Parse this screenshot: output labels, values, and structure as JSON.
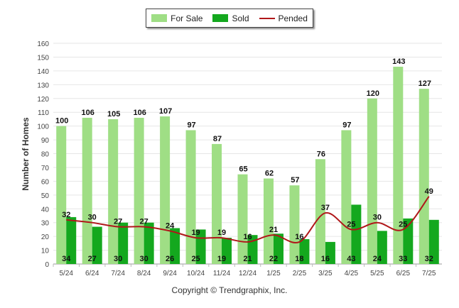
{
  "legend": {
    "for_sale": "For Sale",
    "sold": "Sold",
    "pended": "Pended"
  },
  "colors": {
    "for_sale": "#9fde85",
    "sold": "#14a81e",
    "pended": "#b0171a",
    "grid": "#e6e6e6"
  },
  "footer": "Copyright © Trendgraphix, Inc.",
  "chart_data": {
    "type": "bar",
    "ylabel": "Number of Homes",
    "xlabel": "",
    "ylim": [
      0,
      160
    ],
    "yticks": [
      0,
      10,
      20,
      30,
      40,
      50,
      60,
      70,
      80,
      90,
      100,
      110,
      120,
      130,
      140,
      150,
      160
    ],
    "grid": true,
    "legend_position": "top-center",
    "categories": [
      "5/24",
      "6/24",
      "7/24",
      "8/24",
      "9/24",
      "10/24",
      "11/24",
      "12/24",
      "1/25",
      "2/25",
      "3/25",
      "4/25",
      "5/25",
      "6/25",
      "7/25"
    ],
    "series": [
      {
        "name": "For Sale",
        "kind": "bar",
        "values": [
          100,
          106,
          105,
          106,
          107,
          97,
          87,
          65,
          62,
          57,
          76,
          97,
          120,
          143,
          127
        ]
      },
      {
        "name": "Sold",
        "kind": "bar",
        "values": [
          34,
          27,
          30,
          30,
          26,
          25,
          19,
          21,
          22,
          18,
          16,
          43,
          24,
          33,
          32
        ]
      },
      {
        "name": "Pended",
        "kind": "line",
        "values": [
          32,
          30,
          27,
          27,
          24,
          19,
          19,
          16,
          21,
          16,
          37,
          25,
          30,
          25,
          49
        ]
      }
    ]
  }
}
